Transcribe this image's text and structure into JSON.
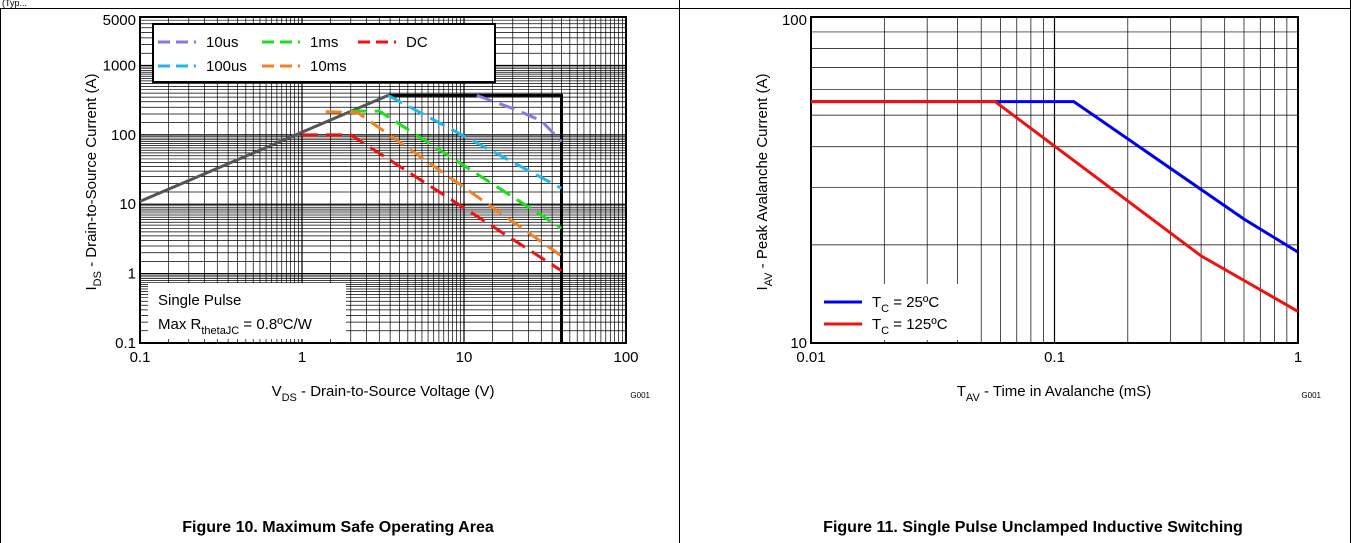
{
  "page": {
    "header_fragment": "(Typ...",
    "panels": [
      {
        "caption": "Figure 10. Maximum Safe Operating Area",
        "code": "G001"
      },
      {
        "caption": "Figure 11. Single Pulse Unclamped Inductive Switching",
        "code": "G001"
      }
    ]
  },
  "chart_data": [
    {
      "type": "line",
      "x_scale": "log",
      "y_scale": "log",
      "xlim": [
        0.1,
        100
      ],
      "ylim": [
        0.1,
        5000
      ],
      "x_ticks": [
        "0.1",
        "1",
        "10",
        "100"
      ],
      "y_ticks": [
        "0.1",
        "1",
        "10",
        "100",
        "1000",
        "5000"
      ],
      "xlabel": {
        "main": "V",
        "sub": "DS",
        "rest": " - Drain-to-Source Voltage (V)"
      },
      "ylabel": {
        "main": "I",
        "sub": "DS",
        "rest": " - Drain-to-Source Current (A)"
      },
      "grid": true,
      "legend_placement": "top-left",
      "legend_columns": [
        [
          "10us",
          "100us"
        ],
        [
          "1ms",
          "10ms"
        ],
        [
          "DC"
        ]
      ],
      "annotation": {
        "line1": "Single Pulse",
        "line2_main": "Max R",
        "line2_sub": "thetaJC",
        "line2_rest": " = 0.8ºC/W"
      },
      "boundary": {
        "color": "#555555",
        "points": [
          [
            0.1,
            11
          ],
          [
            3.4,
            370
          ]
        ]
      },
      "soa_box": {
        "color": "#000000",
        "points": [
          [
            3.4,
            370
          ],
          [
            40,
            370
          ],
          [
            40,
            0.1
          ]
        ]
      },
      "series": [
        {
          "name": "10us",
          "color": "#8E76E0",
          "dash": true,
          "points": [
            [
              12,
              370
            ],
            [
              20,
              240
            ],
            [
              30,
              160
            ],
            [
              40,
              80
            ]
          ]
        },
        {
          "name": "100us",
          "color": "#1FB7EA",
          "dash": true,
          "points": [
            [
              3.4,
              370
            ],
            [
              40,
              17
            ]
          ]
        },
        {
          "name": "1ms",
          "color": "#1AE01A",
          "dash": true,
          "points": [
            [
              2,
              220
            ],
            [
              3,
              220
            ],
            [
              40,
              4.5
            ]
          ]
        },
        {
          "name": "10ms",
          "color": "#F08020",
          "dash": true,
          "points": [
            [
              1.4,
              215
            ],
            [
              2.2,
              210
            ],
            [
              40,
              1.8
            ]
          ]
        },
        {
          "name": "DC",
          "color": "#EE1111",
          "dash": true,
          "points": [
            [
              1,
              100
            ],
            [
              2,
              100
            ],
            [
              40,
              1.1
            ]
          ]
        }
      ]
    },
    {
      "type": "line",
      "x_scale": "log",
      "y_scale": "log",
      "xlim": [
        0.01,
        1
      ],
      "ylim": [
        10,
        100
      ],
      "x_ticks": [
        "0.01",
        "0.1",
        "1"
      ],
      "y_ticks": [
        "10",
        "100"
      ],
      "xlabel": {
        "main": "T",
        "sub": "AV",
        "rest": " - Time in Avalanche (mS)"
      },
      "ylabel": {
        "main": "I",
        "sub": "AV",
        "rest": " - Peak Avalanche Current (A)"
      },
      "grid": true,
      "legend_placement": "bottom-left",
      "series": [
        {
          "label_main": "T",
          "label_sub": "C",
          "label_rest": " = 25ºC",
          "color": "#0000EE",
          "points": [
            [
              0.01,
              55
            ],
            [
              0.12,
              55
            ],
            [
              0.6,
              24
            ],
            [
              1,
              19
            ]
          ]
        },
        {
          "label_main": "T",
          "label_sub": "C",
          "label_rest": " = 125ºC",
          "color": "#EE1111",
          "points": [
            [
              0.01,
              55
            ],
            [
              0.057,
              55
            ],
            [
              0.4,
              18.5
            ],
            [
              1,
              12.5
            ]
          ]
        }
      ]
    }
  ]
}
